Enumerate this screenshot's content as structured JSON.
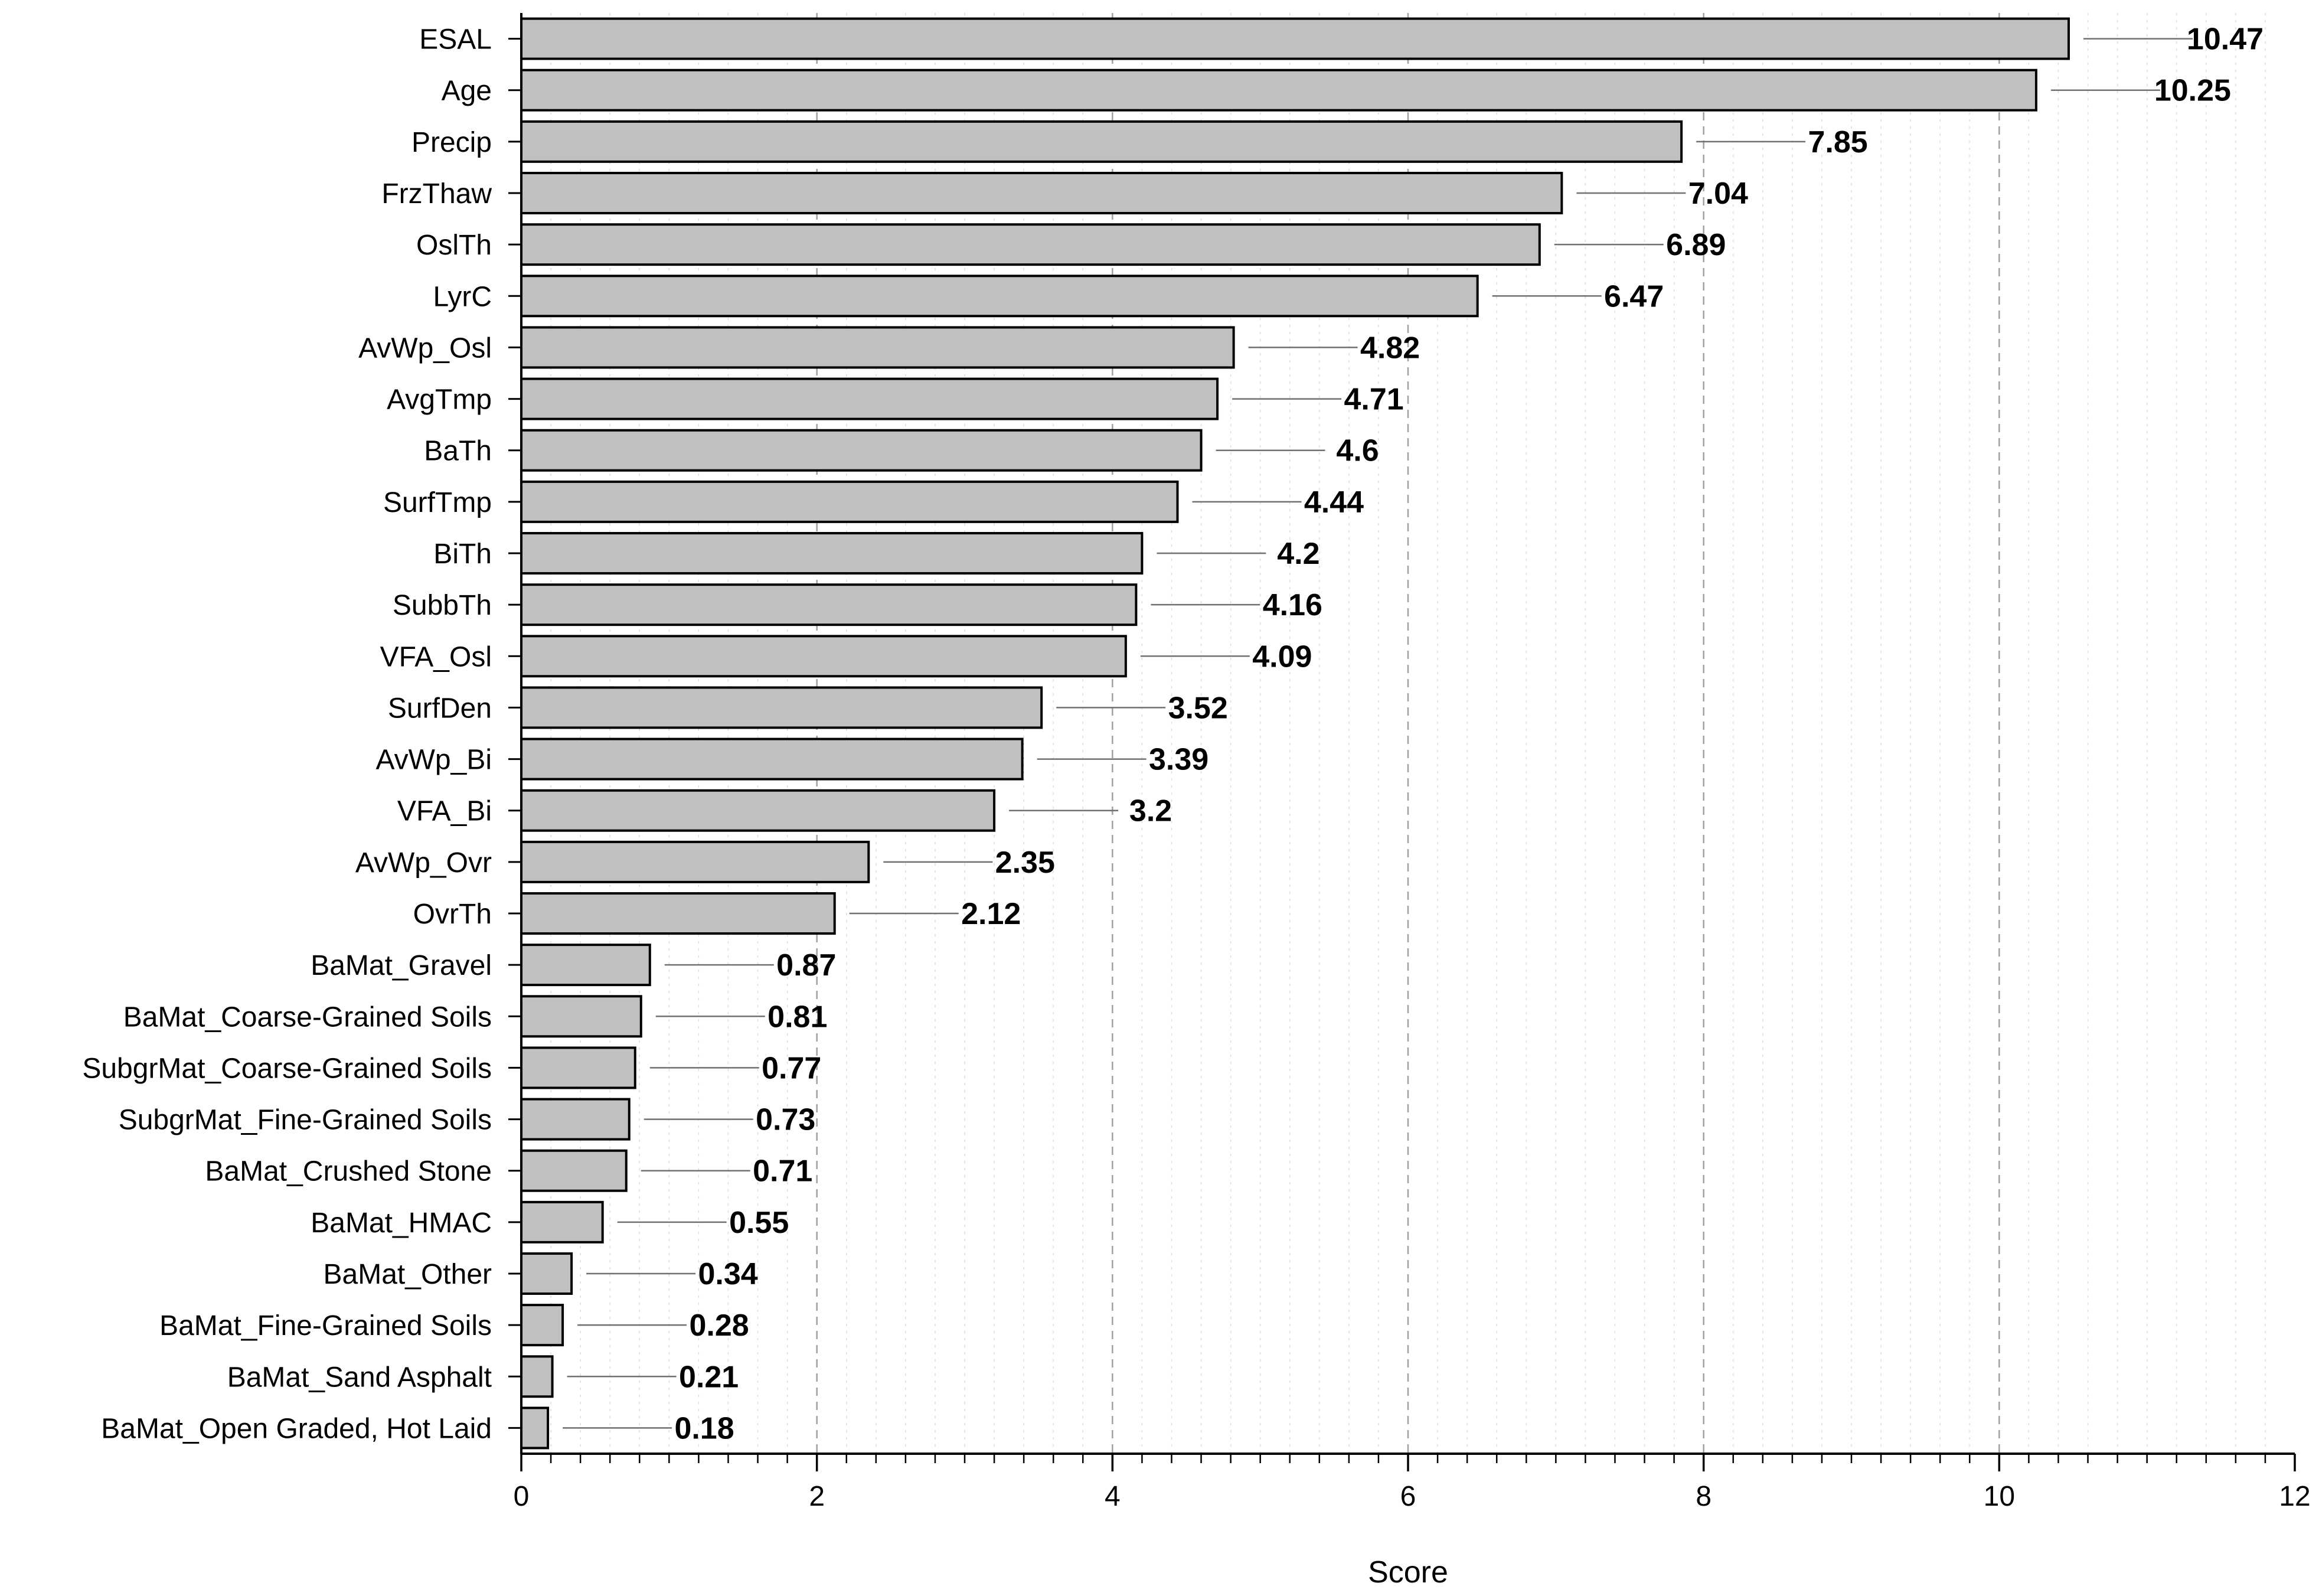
{
  "chart_data": {
    "type": "bar",
    "orientation": "horizontal",
    "title": "",
    "xlabel": "Score",
    "ylabel": "",
    "xlim": [
      0,
      12
    ],
    "xticks": [
      0,
      2,
      4,
      6,
      8,
      10,
      12
    ],
    "grid": "vertical dashed",
    "legend": "none",
    "categories": [
      "ESAL",
      "Age",
      "Precip",
      "FrzThaw",
      "OslTh",
      "LyrC",
      "AvWp_Osl",
      "AvgTmp",
      "BaTh",
      "SurfTmp",
      "BiTh",
      "SubbTh",
      "VFA_Osl",
      "SurfDen",
      "AvWp_Bi",
      "VFA_Bi",
      "AvWp_Ovr",
      "OvrTh",
      "BaMat_Gravel",
      "BaMat_Coarse-Grained Soils",
      "SubgrMat_Coarse-Grained Soils",
      "SubgrMat_Fine-Grained Soils",
      "BaMat_Crushed Stone",
      "BaMat_HMAC",
      "BaMat_Other",
      "BaMat_Fine-Grained Soils",
      "BaMat_Sand Asphalt",
      "BaMat_Open Graded, Hot Laid"
    ],
    "values": [
      10.47,
      10.25,
      7.85,
      7.04,
      6.89,
      6.47,
      4.82,
      4.71,
      4.6,
      4.44,
      4.2,
      4.16,
      4.09,
      3.52,
      3.39,
      3.2,
      2.35,
      2.12,
      0.87,
      0.81,
      0.77,
      0.73,
      0.71,
      0.55,
      0.34,
      0.28,
      0.21,
      0.18
    ],
    "value_labels": [
      "10.47",
      "10.25",
      "7.85",
      "7.04",
      "6.89",
      "6.47",
      "4.82",
      "4.71",
      "4.6",
      "4.44",
      "4.2",
      "4.16",
      "4.09",
      "3.52",
      "3.39",
      "3.2",
      "2.35",
      "2.12",
      "0.87",
      "0.81",
      "0.77",
      "0.73",
      "0.71",
      "0.55",
      "0.34",
      "0.28",
      "0.21",
      "0.18"
    ],
    "colors": {
      "bar_fill": "#c0c0c0",
      "bar_stroke": "#000000",
      "grid": "#a0a0a0",
      "leader": "#707070"
    }
  }
}
